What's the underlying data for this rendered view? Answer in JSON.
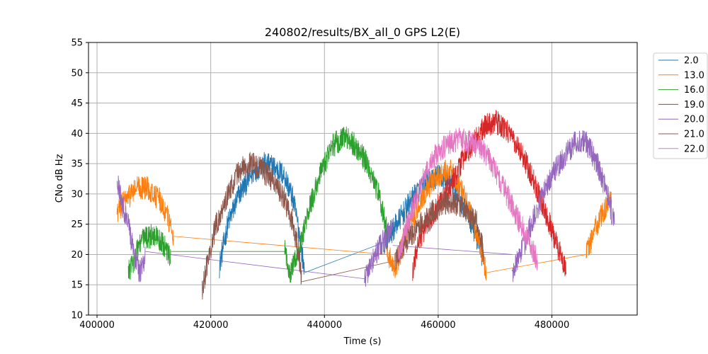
{
  "chart_data": {
    "type": "line",
    "title": "240802/results/BX_all_0 GPS L2(E)",
    "xlabel": "Time (s)",
    "ylabel": "CNo dB Hz",
    "xlim": [
      398500,
      495000
    ],
    "ylim": [
      10,
      55
    ],
    "xticks": [
      400000,
      420000,
      440000,
      460000,
      480000
    ],
    "xtick_labels": [
      "400000",
      "420000",
      "440000",
      "460000",
      "480000"
    ],
    "yticks": [
      10,
      15,
      20,
      25,
      30,
      35,
      40,
      45,
      50,
      55
    ],
    "ytick_labels": [
      "10",
      "15",
      "20",
      "25",
      "30",
      "35",
      "40",
      "45",
      "50",
      "55"
    ],
    "grid": true,
    "legend_position": "right, outside plot",
    "series": [
      {
        "name": "2.0",
        "color": "#1f77b4",
        "x": [
          421500,
          423000,
          425000,
          427000,
          429000,
          431000,
          433000,
          434500,
          435500,
          436500,
          450500,
          452000,
          454000,
          456000,
          458000,
          460000,
          462000,
          464000,
          466000,
          468000
        ],
        "y": [
          18,
          25,
          30,
          33,
          35,
          34.5,
          33,
          29,
          24,
          17,
          22,
          24,
          27,
          30,
          32,
          33,
          32,
          29,
          25,
          19
        ]
      },
      {
        "name": "13.0",
        "color": "#ff7f0e",
        "x": [
          403500,
          405000,
          407000,
          409000,
          411000,
          412500,
          413500,
          451000,
          452500,
          454000,
          456000,
          458000,
          460000,
          462000,
          464000,
          466000,
          467500,
          468500,
          486000,
          487500,
          489000,
          490500
        ],
        "y": [
          27,
          29,
          31,
          31,
          29,
          26,
          23,
          20,
          18,
          22,
          27,
          31,
          33,
          34,
          31,
          26,
          21,
          17,
          20,
          24,
          27,
          29
        ]
      },
      {
        "name": "16.0",
        "color": "#2ca02c",
        "x": [
          405500,
          406500,
          407500,
          409000,
          410500,
          412000,
          413000,
          433000,
          434000,
          435500,
          437500,
          439500,
          441500,
          443500,
          445500,
          447500,
          449500,
          451000
        ],
        "y": [
          17,
          19,
          22,
          23,
          23,
          21,
          19,
          20.5,
          17,
          21,
          28,
          34,
          38,
          39.5,
          38,
          35,
          30,
          24
        ]
      },
      {
        "name": "19.0",
        "color": "#d62728",
        "x": [
          455500,
          456500,
          458000,
          460000,
          462000,
          464000,
          466000,
          468000,
          470000,
          472000,
          474000,
          476000,
          478000,
          480000,
          481500,
          482500
        ],
        "y": [
          17,
          22,
          25,
          28,
          31,
          35,
          38,
          41,
          42,
          40.5,
          38,
          34,
          29,
          24,
          20,
          17
        ]
      },
      {
        "name": "20.0",
        "color": "#9467bd",
        "x": [
          403500,
          404500,
          405500,
          406500,
          407500,
          408500,
          447000,
          448000,
          449500,
          451000,
          452000,
          473000,
          474500,
          476000,
          478000,
          480000,
          482000,
          484000,
          486000,
          488000,
          490000,
          491000
        ],
        "y": [
          32,
          28,
          25,
          20,
          17,
          20,
          16,
          18,
          21,
          23,
          25,
          17,
          20,
          24,
          29,
          33,
          36,
          38.5,
          38.5,
          35,
          29,
          25
        ]
      },
      {
        "name": "21.0",
        "color": "#8c564b",
        "x": [
          418500,
          419500,
          421000,
          423000,
          425000,
          427000,
          429000,
          431000,
          433000,
          434500,
          435500,
          436000,
          452500,
          453500,
          455000,
          457000,
          459000,
          461000,
          463000,
          465000,
          467000,
          468000
        ],
        "y": [
          14,
          19,
          25,
          30,
          34,
          35,
          34,
          32,
          29,
          25,
          20,
          15.5,
          19,
          21,
          23,
          25,
          27,
          28.5,
          28.5,
          27,
          25,
          20
        ]
      },
      {
        "name": "22.0",
        "color": "#e377c2",
        "x": [
          453000,
          454000,
          456000,
          458000,
          460000,
          462000,
          464000,
          466000,
          468000,
          470000,
          472000,
          474000,
          476000,
          477500
        ],
        "y": [
          20,
          23,
          29,
          34,
          37,
          38.5,
          39,
          38.5,
          37,
          34,
          30,
          26,
          22,
          19
        ]
      }
    ],
    "connector_lines": [
      {
        "series": "2.0",
        "x": [
          436500,
          450500
        ],
        "y": [
          17,
          22
        ]
      },
      {
        "series": "13.0",
        "x": [
          413500,
          451000
        ],
        "y": [
          23,
          20
        ]
      },
      {
        "series": "13.0",
        "x": [
          468500,
          486000
        ],
        "y": [
          17,
          20
        ]
      },
      {
        "series": "16.0",
        "x": [
          413000,
          433000
        ],
        "y": [
          20.5,
          20.5
        ]
      },
      {
        "series": "20.0",
        "x": [
          408500,
          447000
        ],
        "y": [
          20.5,
          16
        ]
      },
      {
        "series": "20.0",
        "x": [
          452000,
          473000
        ],
        "y": [
          21.5,
          20
        ]
      },
      {
        "series": "21.0",
        "x": [
          436000,
          452500
        ],
        "y": [
          15.5,
          19
        ]
      }
    ]
  }
}
